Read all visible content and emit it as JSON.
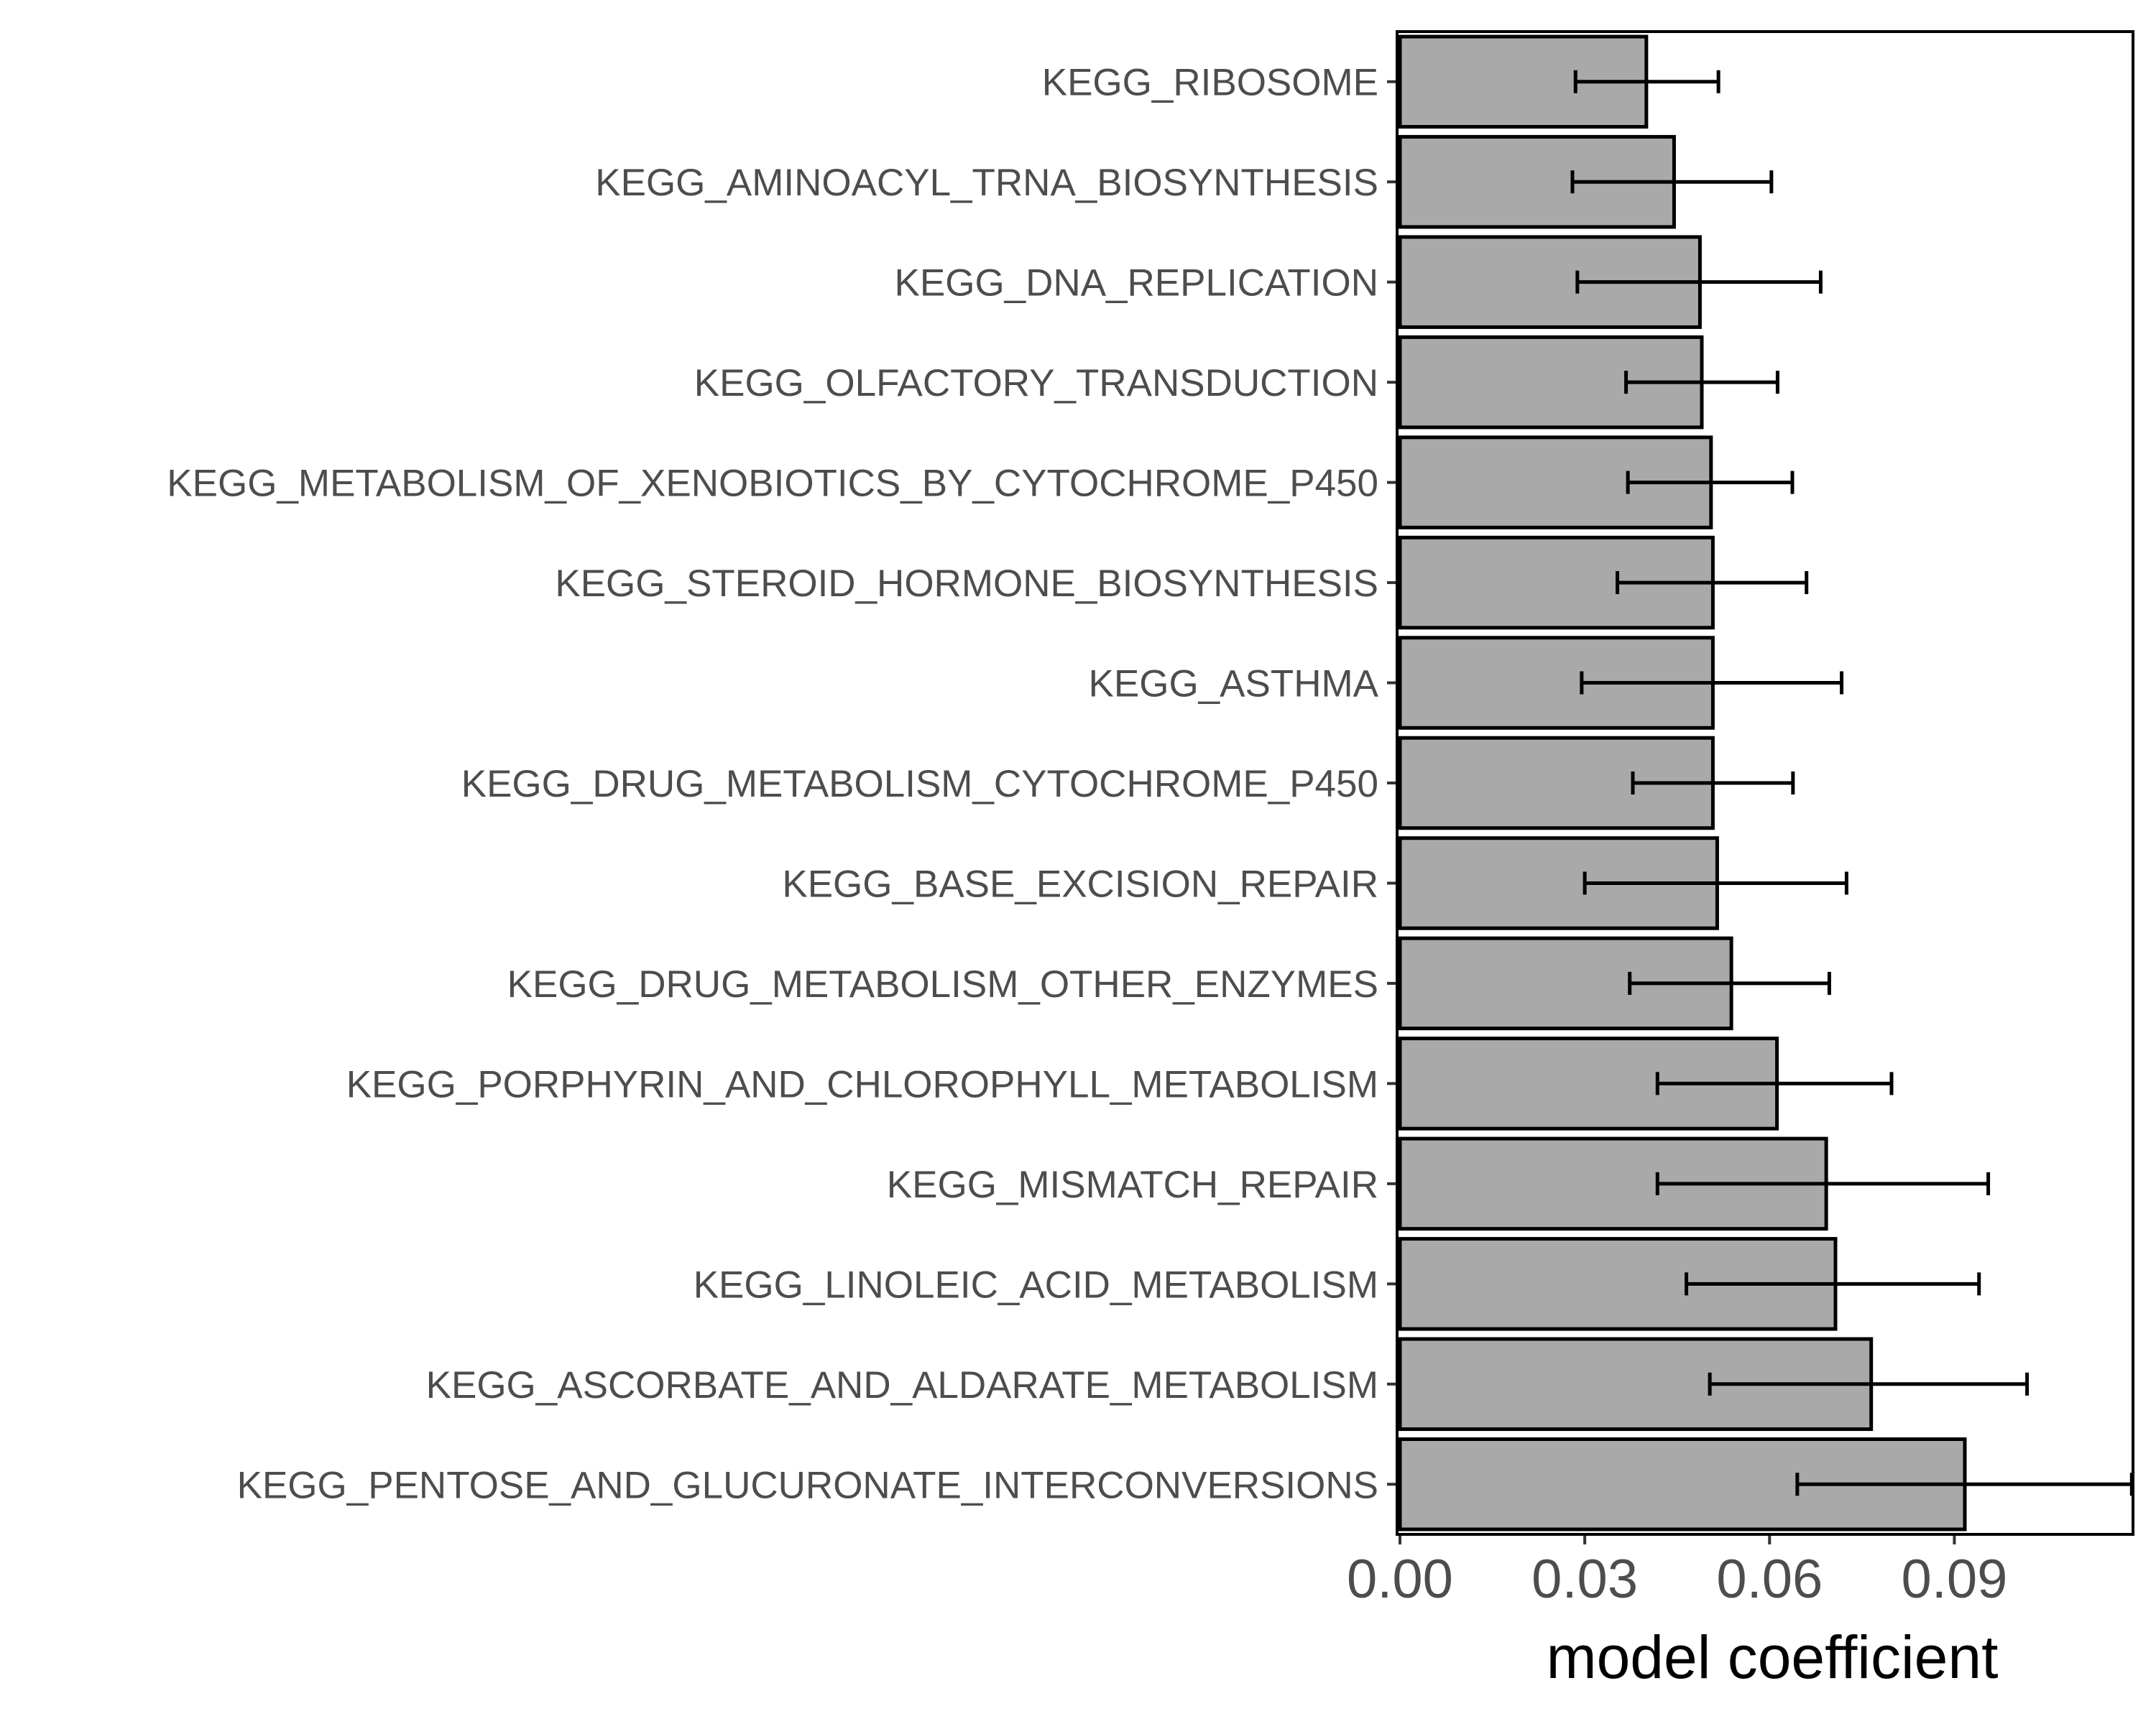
{
  "chart_data": {
    "type": "bar",
    "orientation": "horizontal",
    "title": "",
    "xlabel": "model coefficient",
    "ylabel": "",
    "xlim": [
      0,
      0.119
    ],
    "x_ticks": [
      "0.00",
      "0.03",
      "0.06",
      "0.09"
    ],
    "x_tick_values": [
      0.0,
      0.03,
      0.06,
      0.09
    ],
    "grid": false,
    "bar_fill": "#a9a9a9",
    "bar_stroke": "#000000",
    "categories": [
      "KEGG_RIBOSOME",
      "KEGG_AMINOACYL_TRNA_BIOSYNTHESIS",
      "KEGG_DNA_REPLICATION",
      "KEGG_OLFACTORY_TRANSDUCTION",
      "KEGG_METABOLISM_OF_XENOBIOTICS_BY_CYTOCHROME_P450",
      "KEGG_STEROID_HORMONE_BIOSYNTHESIS",
      "KEGG_ASTHMA",
      "KEGG_DRUG_METABOLISM_CYTOCHROME_P450",
      "KEGG_BASE_EXCISION_REPAIR",
      "KEGG_DRUG_METABOLISM_OTHER_ENZYMES",
      "KEGG_PORPHYRIN_AND_CHLOROPHYLL_METABOLISM",
      "KEGG_MISMATCH_REPAIR",
      "KEGG_LINOLEIC_ACID_METABOLISM",
      "KEGG_ASCORBATE_AND_ALDARATE_METABOLISM",
      "KEGG_PENTOSE_AND_GLUCURONATE_INTERCONVERSIONS"
    ],
    "values": [
      0.04,
      0.0445,
      0.0487,
      0.049,
      0.0505,
      0.0508,
      0.0508,
      0.0508,
      0.0515,
      0.0538,
      0.0612,
      0.0692,
      0.0707,
      0.0765,
      0.0917
    ],
    "error_low": [
      0.0285,
      0.028,
      0.0288,
      0.0367,
      0.037,
      0.0353,
      0.0295,
      0.0378,
      0.03,
      0.0373,
      0.0418,
      0.0418,
      0.0465,
      0.0503,
      0.0645
    ],
    "error_high": [
      0.0517,
      0.0603,
      0.0683,
      0.0613,
      0.0637,
      0.066,
      0.0717,
      0.0638,
      0.0725,
      0.0697,
      0.0798,
      0.0955,
      0.094,
      0.1018,
      0.1188
    ]
  }
}
